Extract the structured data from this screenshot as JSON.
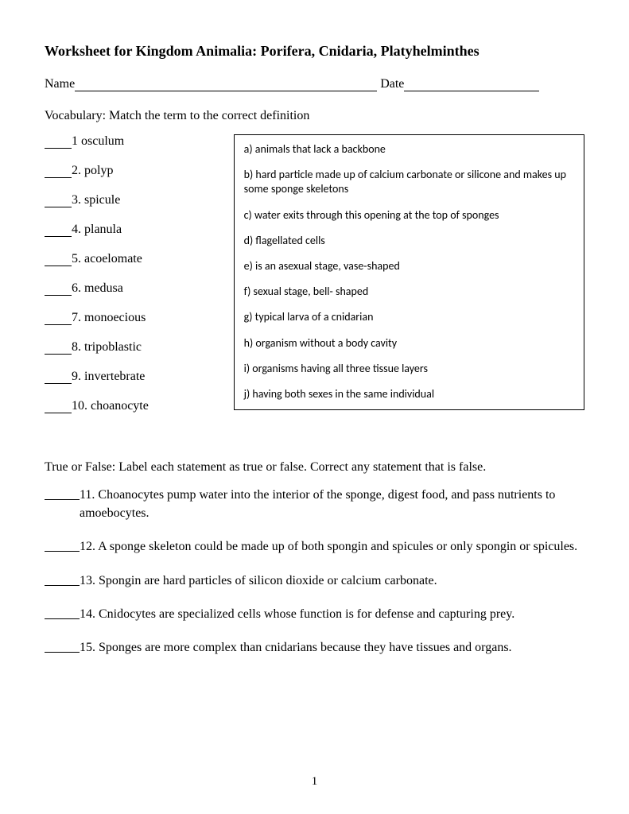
{
  "title": "Worksheet for Kingdom Animalia: Porifera, Cnidaria, Platyhelminthes",
  "name_label": "Name",
  "date_label": "Date",
  "vocab_instructions": "Vocabulary: Match the term to the correct definition",
  "terms": [
    {
      "num": "1",
      "sep": " ",
      "label": "osculum"
    },
    {
      "num": "2",
      "sep": ". ",
      "label": "polyp"
    },
    {
      "num": "3",
      "sep": ". ",
      "label": "spicule"
    },
    {
      "num": "4",
      "sep": ". ",
      "label": "planula"
    },
    {
      "num": "5",
      "sep": ". ",
      "label": "acoelomate"
    },
    {
      "num": "6",
      "sep": ". ",
      "label": "medusa"
    },
    {
      "num": "7",
      "sep": ". ",
      "label": "monoecious"
    },
    {
      "num": "8",
      "sep": ". ",
      "label": "tripoblastic"
    },
    {
      "num": "9",
      "sep": ". ",
      "label": "invertebrate"
    },
    {
      "num": "10",
      "sep": ". ",
      "label": "choanocyte"
    }
  ],
  "definitions": [
    "a) animals that lack a backbone",
    "b) hard particle made up of calcium carbonate or silicone and makes up some sponge skeletons",
    "c) water exits through this opening at the top of sponges",
    "d) flagellated cells",
    "e) is an asexual stage, vase-shaped",
    "f) sexual stage, bell- shaped",
    "g) typical larva of a cnidarian",
    "h) organism without a body cavity",
    "i) organisms having all three tissue layers",
    "j) having both sexes in the same individual"
  ],
  "tf_instructions": "True or False: Label each statement as true or false. Correct any statement that is false.",
  "tf_items": [
    {
      "num": "11",
      "text": "Choanocytes pump water into the interior of the sponge, digest food, and pass nutrients to amoebocytes."
    },
    {
      "num": "12",
      "text": "A sponge skeleton could be made up of both spongin and spicules or only spongin or spicules."
    },
    {
      "num": "13",
      "text": "Spongin are hard particles of silicon dioxide or calcium carbonate."
    },
    {
      "num": "14",
      "text": "Cnidocytes are specialized cells whose function is for defense and capturing prey."
    },
    {
      "num": "15",
      "text": "Sponges are more complex than cnidarians because they have tissues and organs."
    }
  ],
  "page_number": "1"
}
